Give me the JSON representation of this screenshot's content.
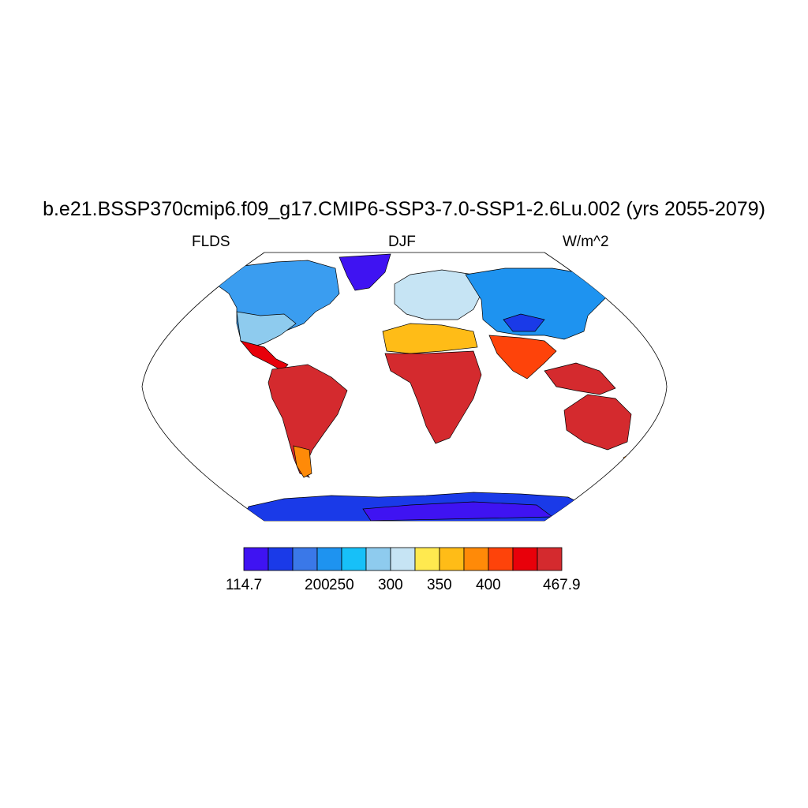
{
  "title": "b.e21.BSSP370cmip6.f09_g17.CMIP6-SSP3-7.0-SSP1-2.6Lu.002 (yrs 2055-2079)",
  "subtitle_left": "FLDS",
  "subtitle_center": "DJF",
  "subtitle_right": "W/m^2",
  "colorbar": {
    "colors": [
      "#3f13f2",
      "#1a3ae8",
      "#3a78e8",
      "#1e93f0",
      "#17c0f8",
      "#8ecbee",
      "#c6e4f4",
      "#ffe94f",
      "#ffbc17",
      "#ff8a08",
      "#fe430a",
      "#e8000a",
      "#d42a2e"
    ],
    "labels": [
      "114.7",
      "200",
      "250",
      "300",
      "350",
      "400",
      "467.9"
    ]
  }
}
